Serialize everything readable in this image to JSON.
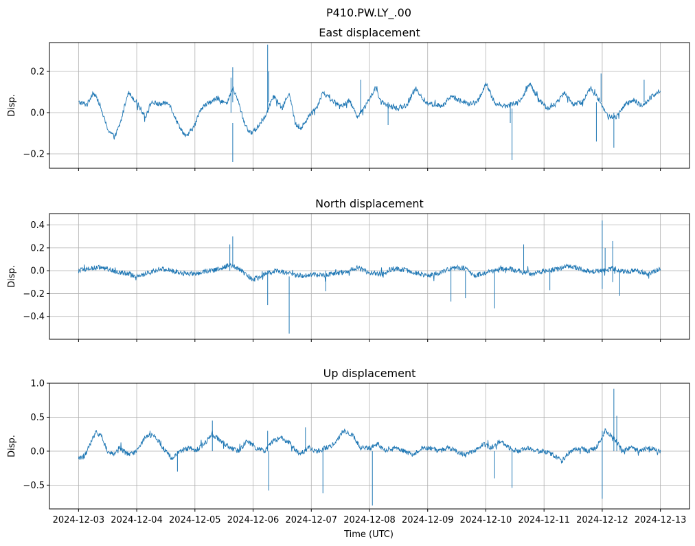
{
  "figure": {
    "suptitle": "P410.PW.LY_.00",
    "xlabel": "Time (UTC)"
  },
  "colors": {
    "line": "#1f77b4",
    "grid": "#b0b0b0",
    "axes": "#000000"
  },
  "chart_data": [
    {
      "type": "line",
      "title": "East displacement",
      "ylabel": "Disp.",
      "xlabel": "",
      "ylim": [
        -0.27,
        0.34
      ],
      "yticks": [
        -0.2,
        0.0,
        0.2
      ],
      "ytick_labels": [
        "−0.2",
        "0.0",
        "0.2"
      ],
      "show_xtick_labels": false,
      "grid": true,
      "series": [
        {
          "x": [
            0.0,
            0.15,
            0.25,
            0.35,
            0.5,
            0.62,
            0.72,
            0.85,
            1.0,
            1.15,
            1.25,
            1.4,
            1.55,
            1.7,
            1.85,
            2.0,
            2.1,
            2.25,
            2.4,
            2.55,
            2.65,
            2.75,
            2.85,
            2.95,
            3.05,
            3.2,
            3.35,
            3.5,
            3.62,
            3.72,
            3.82,
            3.95,
            4.1,
            4.2,
            4.35,
            4.5,
            4.65,
            4.8,
            4.95,
            5.1,
            5.2,
            5.35,
            5.5,
            5.65,
            5.8,
            5.95,
            6.1,
            6.25,
            6.4,
            6.55,
            6.7,
            6.85,
            7.0,
            7.15,
            7.3,
            7.45,
            7.6,
            7.75,
            7.9,
            8.05,
            8.2,
            8.35,
            8.5,
            8.65,
            8.8,
            8.95,
            9.1,
            9.25,
            9.4,
            9.55,
            9.7,
            9.85,
            10.0
          ],
          "y": [
            0.05,
            0.04,
            0.1,
            0.05,
            -0.08,
            -0.12,
            -0.05,
            0.1,
            0.05,
            -0.02,
            0.05,
            0.04,
            0.05,
            -0.05,
            -0.12,
            -0.06,
            0.02,
            0.05,
            0.07,
            0.04,
            0.12,
            0.05,
            -0.05,
            -0.1,
            -0.08,
            -0.02,
            0.08,
            0.02,
            0.1,
            -0.05,
            -0.08,
            -0.02,
            0.03,
            0.1,
            0.06,
            0.03,
            0.06,
            -0.02,
            0.04,
            0.12,
            0.05,
            0.03,
            0.02,
            0.04,
            0.12,
            0.05,
            0.04,
            0.03,
            0.08,
            0.06,
            0.04,
            0.05,
            0.14,
            0.05,
            0.03,
            0.04,
            0.06,
            0.14,
            0.07,
            0.02,
            0.04,
            0.1,
            0.04,
            0.05,
            0.12,
            0.06,
            -0.02,
            -0.02,
            0.04,
            0.06,
            0.03,
            0.08,
            0.11
          ]
        }
      ],
      "spikes": [
        {
          "x": 2.65,
          "min": 0.05,
          "max": 0.22
        },
        {
          "x": 2.62,
          "min": 0.0,
          "max": 0.17
        },
        {
          "x": 2.65,
          "min": -0.24,
          "max": -0.05
        },
        {
          "x": 3.25,
          "min": 0.0,
          "max": 0.33
        },
        {
          "x": 3.27,
          "min": 0.05,
          "max": 0.2
        },
        {
          "x": 4.85,
          "min": 0.0,
          "max": 0.16
        },
        {
          "x": 5.32,
          "min": -0.06,
          "max": 0.05
        },
        {
          "x": 7.45,
          "min": -0.23,
          "max": 0.02
        },
        {
          "x": 7.42,
          "min": -0.05,
          "max": 0.05
        },
        {
          "x": 8.9,
          "min": -0.14,
          "max": 0.05
        },
        {
          "x": 8.98,
          "min": 0.05,
          "max": 0.19
        },
        {
          "x": 9.2,
          "min": -0.17,
          "max": 0.0
        },
        {
          "x": 9.72,
          "min": 0.05,
          "max": 0.16
        }
      ]
    },
    {
      "type": "line",
      "title": "North displacement",
      "ylabel": "Disp.",
      "xlabel": "",
      "ylim": [
        -0.6,
        0.5
      ],
      "yticks": [
        -0.4,
        -0.2,
        0.0,
        0.2,
        0.4
      ],
      "ytick_labels": [
        "−0.4",
        "−0.2",
        "0.0",
        "0.2",
        "0.4"
      ],
      "show_xtick_labels": false,
      "grid": true,
      "series": [
        {
          "x": [
            0.0,
            0.2,
            0.4,
            0.6,
            0.8,
            1.0,
            1.2,
            1.4,
            1.6,
            1.8,
            2.0,
            2.2,
            2.4,
            2.6,
            2.8,
            3.0,
            3.2,
            3.4,
            3.6,
            3.8,
            4.0,
            4.2,
            4.4,
            4.6,
            4.8,
            5.0,
            5.2,
            5.4,
            5.6,
            5.8,
            6.0,
            6.2,
            6.4,
            6.6,
            6.8,
            7.0,
            7.2,
            7.4,
            7.6,
            7.8,
            8.0,
            8.2,
            8.4,
            8.6,
            8.8,
            9.0,
            9.2,
            9.4,
            9.6,
            9.8,
            10.0
          ],
          "y": [
            0.0,
            0.02,
            0.03,
            0.0,
            -0.02,
            -0.05,
            -0.02,
            0.02,
            0.0,
            -0.02,
            -0.03,
            0.0,
            0.01,
            0.05,
            0.0,
            -0.08,
            -0.03,
            0.0,
            -0.02,
            -0.05,
            -0.03,
            -0.04,
            -0.02,
            -0.01,
            0.03,
            -0.02,
            -0.03,
            0.02,
            0.01,
            -0.02,
            -0.04,
            -0.02,
            0.02,
            0.03,
            -0.04,
            -0.02,
            0.01,
            0.02,
            -0.01,
            -0.03,
            0.0,
            0.01,
            0.04,
            0.02,
            -0.01,
            0.0,
            0.02,
            -0.01,
            0.0,
            -0.03,
            0.02
          ]
        }
      ],
      "spikes": [
        {
          "x": 2.6,
          "min": 0.0,
          "max": 0.23
        },
        {
          "x": 2.65,
          "min": 0.05,
          "max": 0.3
        },
        {
          "x": 3.25,
          "min": -0.3,
          "max": 0.0
        },
        {
          "x": 3.62,
          "min": -0.55,
          "max": -0.05
        },
        {
          "x": 4.25,
          "min": -0.18,
          "max": 0.0
        },
        {
          "x": 6.4,
          "min": -0.27,
          "max": 0.0
        },
        {
          "x": 6.65,
          "min": -0.24,
          "max": 0.0
        },
        {
          "x": 7.15,
          "min": -0.33,
          "max": 0.0
        },
        {
          "x": 7.65,
          "min": 0.0,
          "max": 0.23
        },
        {
          "x": 8.1,
          "min": -0.17,
          "max": 0.0
        },
        {
          "x": 9.0,
          "min": -0.16,
          "max": 0.44
        },
        {
          "x": 9.05,
          "min": 0.0,
          "max": 0.2
        },
        {
          "x": 9.18,
          "min": -0.1,
          "max": 0.26
        },
        {
          "x": 9.3,
          "min": -0.22,
          "max": 0.0
        }
      ]
    },
    {
      "type": "line",
      "title": "Up displacement",
      "ylabel": "Disp.",
      "xlabel": "Time (UTC)",
      "ylim": [
        -0.85,
        1.0
      ],
      "yticks": [
        -0.5,
        0.0,
        0.5,
        1.0
      ],
      "ytick_labels": [
        "−0.5",
        "0.0",
        "0.5",
        "1.0"
      ],
      "show_xtick_labels": true,
      "grid": true,
      "series": [
        {
          "x": [
            0.0,
            0.1,
            0.2,
            0.3,
            0.4,
            0.5,
            0.6,
            0.7,
            0.8,
            0.9,
            1.0,
            1.15,
            1.3,
            1.45,
            1.6,
            1.75,
            1.9,
            2.0,
            2.15,
            2.3,
            2.45,
            2.6,
            2.75,
            2.9,
            3.05,
            3.2,
            3.35,
            3.5,
            3.65,
            3.8,
            3.95,
            4.1,
            4.25,
            4.4,
            4.55,
            4.7,
            4.85,
            5.0,
            5.15,
            5.3,
            5.45,
            5.6,
            5.75,
            5.9,
            6.05,
            6.2,
            6.35,
            6.5,
            6.65,
            6.8,
            6.95,
            7.1,
            7.25,
            7.4,
            7.55,
            7.7,
            7.85,
            8.0,
            8.15,
            8.3,
            8.45,
            8.6,
            8.75,
            8.9,
            9.05,
            9.2,
            9.35,
            9.5,
            9.65,
            9.8,
            10.0
          ],
          "y": [
            -0.1,
            -0.08,
            0.1,
            0.3,
            0.2,
            0.0,
            -0.05,
            0.05,
            -0.02,
            -0.05,
            0.0,
            0.2,
            0.25,
            0.05,
            -0.1,
            0.0,
            0.05,
            0.0,
            0.1,
            0.25,
            0.15,
            0.05,
            0.0,
            0.15,
            0.05,
            0.0,
            0.15,
            0.2,
            0.1,
            -0.05,
            0.05,
            0.0,
            0.05,
            0.1,
            0.3,
            0.25,
            0.05,
            0.05,
            0.1,
            0.0,
            0.05,
            0.0,
            -0.05,
            0.05,
            0.05,
            0.0,
            0.05,
            0.0,
            -0.05,
            0.0,
            0.1,
            0.05,
            0.15,
            0.05,
            0.0,
            0.05,
            0.0,
            0.0,
            -0.05,
            -0.15,
            0.0,
            0.05,
            0.0,
            0.05,
            0.3,
            0.2,
            0.0,
            0.05,
            0.0,
            0.05,
            0.0
          ]
        }
      ],
      "spikes": [
        {
          "x": 1.7,
          "min": -0.3,
          "max": 0.0
        },
        {
          "x": 2.3,
          "min": 0.0,
          "max": 0.45
        },
        {
          "x": 3.27,
          "min": -0.58,
          "max": 0.0
        },
        {
          "x": 3.25,
          "min": 0.0,
          "max": 0.3
        },
        {
          "x": 3.9,
          "min": 0.0,
          "max": 0.35
        },
        {
          "x": 4.2,
          "min": -0.62,
          "max": 0.0
        },
        {
          "x": 5.05,
          "min": -0.8,
          "max": 0.0
        },
        {
          "x": 7.15,
          "min": -0.4,
          "max": 0.0
        },
        {
          "x": 7.45,
          "min": -0.54,
          "max": 0.0
        },
        {
          "x": 9.0,
          "min": -0.7,
          "max": 0.3
        },
        {
          "x": 9.2,
          "min": 0.0,
          "max": 0.92
        },
        {
          "x": 9.25,
          "min": 0.0,
          "max": 0.52
        }
      ]
    }
  ],
  "x_axis": {
    "range": [
      -0.5,
      10.5
    ],
    "ticks": [
      0,
      1,
      2,
      3,
      4,
      5,
      6,
      7,
      8,
      9,
      10
    ],
    "tick_labels": [
      "2024-12-03",
      "2024-12-04",
      "2024-12-05",
      "2024-12-06",
      "2024-12-07",
      "2024-12-08",
      "2024-12-09",
      "2024-12-10",
      "2024-12-11",
      "2024-12-12",
      "2024-12-13"
    ]
  }
}
